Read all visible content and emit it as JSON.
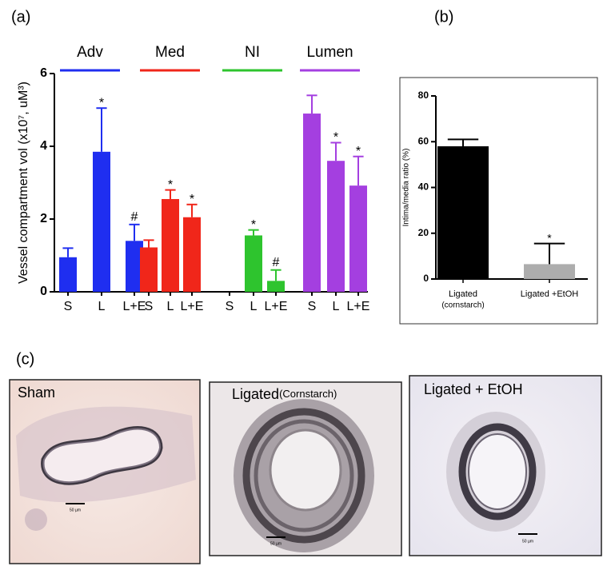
{
  "chart_data": [
    {
      "type": "bar",
      "panel": "(a)",
      "ylabel": "Vessel compartment vol (x10⁷, uM³)",
      "categories": [
        "S",
        "L",
        "L+E"
      ],
      "series": [
        {
          "name": "Adv",
          "color": "#1f2ef0",
          "values": [
            0.95,
            3.85,
            1.4
          ],
          "errors": [
            0.25,
            1.2,
            0.45
          ],
          "annotations": [
            null,
            "*",
            "#"
          ]
        },
        {
          "name": "Med",
          "color": "#f0261a",
          "values": [
            1.22,
            2.55,
            2.05
          ],
          "errors": [
            0.2,
            0.25,
            0.35
          ],
          "annotations": [
            null,
            "*",
            "*"
          ]
        },
        {
          "name": "NI",
          "color": "#2ec42e",
          "values": [
            0,
            1.55,
            0.3
          ],
          "errors": [
            null,
            0.15,
            0.3
          ],
          "annotations": [
            null,
            "*",
            "#"
          ]
        },
        {
          "name": "Lumen",
          "color": "#a43fe0",
          "values": [
            4.9,
            3.6,
            2.92
          ],
          "errors": [
            0.5,
            0.5,
            0.8
          ],
          "annotations": [
            null,
            "*",
            "*"
          ]
        }
      ],
      "ylim": [
        0,
        6
      ],
      "yticks": [
        0,
        2,
        4,
        6
      ]
    },
    {
      "type": "bar",
      "panel": "(b)",
      "ylabel": "Intima/media ratio (%)",
      "categories": [
        [
          "Ligated",
          "(cornstarch)"
        ],
        [
          "Ligated +EtOH"
        ]
      ],
      "values": [
        58,
        6.5
      ],
      "errors": [
        3,
        9
      ],
      "colors": [
        "#000000",
        "#adadad"
      ],
      "annotations": [
        null,
        "*"
      ],
      "ylim": [
        0,
        80
      ],
      "yticks": [
        0,
        20,
        40,
        60,
        80
      ]
    }
  ],
  "figure_c": {
    "panel": "(c)",
    "images": [
      {
        "caption": "Sham",
        "scale": "50 µm"
      },
      {
        "caption": "Ligated",
        "caption_small": "(Cornstarch)",
        "scale": "50 µm"
      },
      {
        "caption": "Ligated + EtOH",
        "scale": "50 µm"
      }
    ]
  }
}
